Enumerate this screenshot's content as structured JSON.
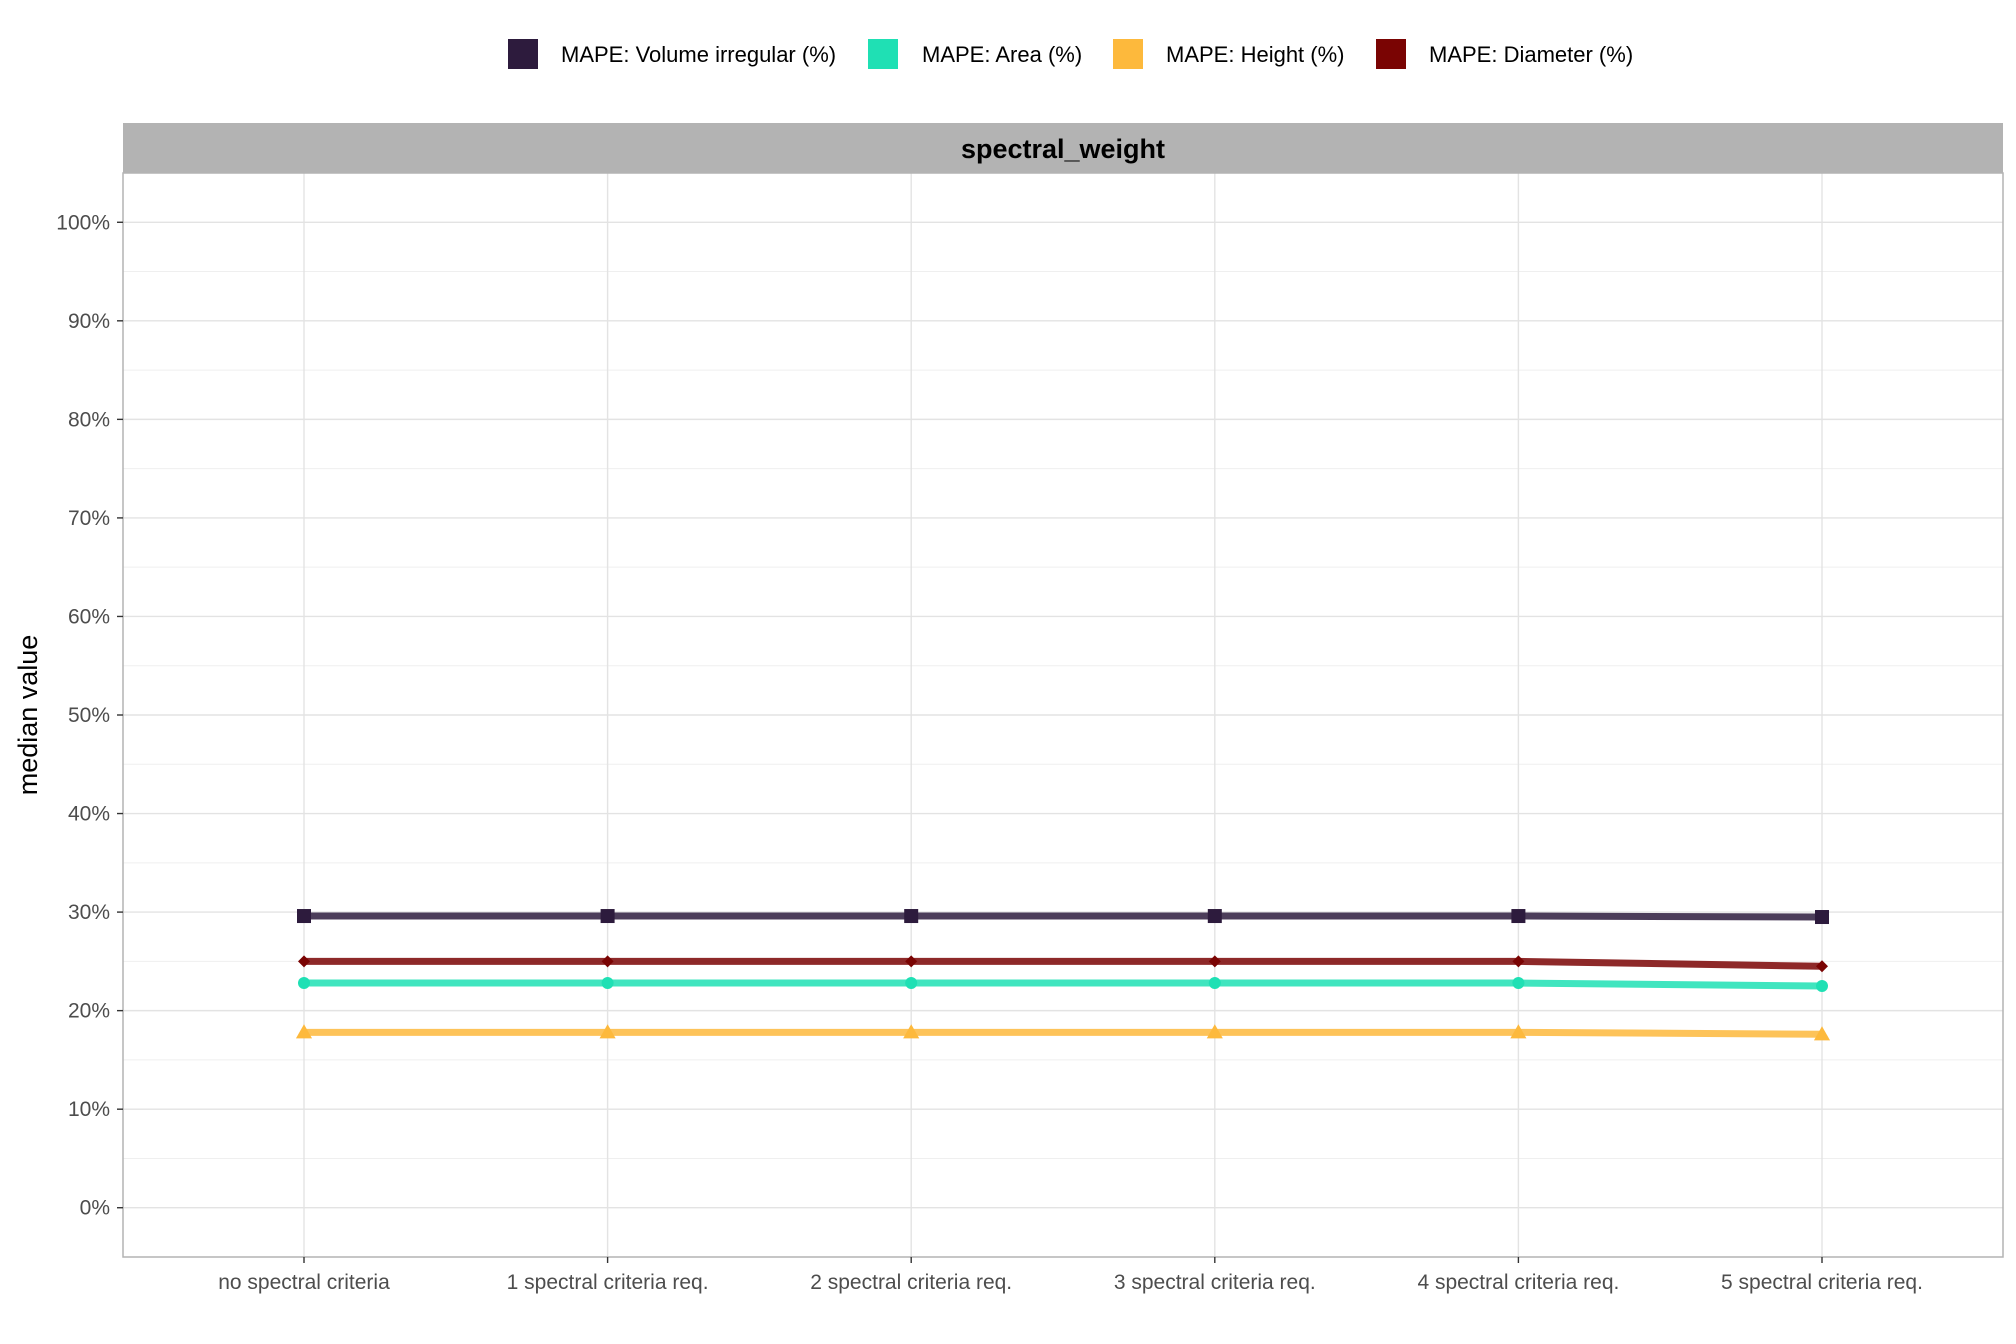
{
  "chart_data": {
    "type": "line",
    "facet_label": "spectral_weight",
    "ylabel": "median value",
    "xlabel": "",
    "categories": [
      "no spectral criteria",
      "1 spectral criteria req.",
      "2 spectral criteria req.",
      "3 spectral criteria req.",
      "4 spectral criteria req.",
      "5 spectral criteria req."
    ],
    "ylim": [
      -0.05,
      1.05
    ],
    "y_ticks": [
      0,
      0.1,
      0.2,
      0.3,
      0.4,
      0.5,
      0.6,
      0.7,
      0.8,
      0.9,
      1.0
    ],
    "y_tick_labels": [
      "0%",
      "10%",
      "20%",
      "30%",
      "40%",
      "50%",
      "60%",
      "70%",
      "80%",
      "90%",
      "100%"
    ],
    "legend_position": "top",
    "grid": true,
    "series": [
      {
        "name": "MAPE: Volume irregular (%)",
        "color": "#2d1b3d",
        "marker": "square",
        "values": [
          0.296,
          0.296,
          0.296,
          0.296,
          0.296,
          0.295
        ]
      },
      {
        "name": "MAPE: Area (%)",
        "color": "#1fe0b4",
        "marker": "circle",
        "values": [
          0.228,
          0.228,
          0.228,
          0.228,
          0.228,
          0.225
        ]
      },
      {
        "name": "MAPE: Height (%)",
        "color": "#fdb93c",
        "marker": "triangle",
        "values": [
          0.178,
          0.178,
          0.178,
          0.178,
          0.178,
          0.176
        ]
      },
      {
        "name": "MAPE: Diameter (%)",
        "color": "#7a0403",
        "marker": "diamond",
        "values": [
          0.25,
          0.25,
          0.25,
          0.25,
          0.25,
          0.245
        ]
      }
    ]
  }
}
